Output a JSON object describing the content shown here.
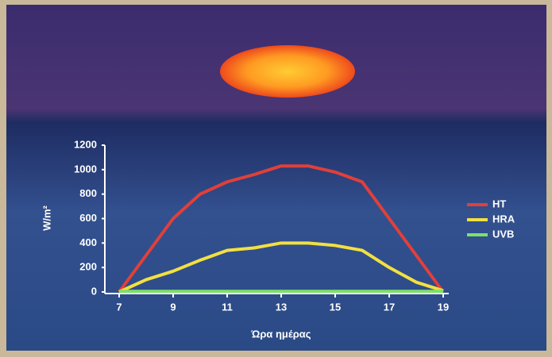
{
  "chart_data": {
    "type": "line",
    "y_label": "W/m²",
    "x_label": "Ώρα ημέρας",
    "x": [
      7,
      8,
      9,
      10,
      11,
      12,
      13,
      14,
      15,
      16,
      17,
      18,
      19
    ],
    "series": [
      {
        "name": "HT",
        "color": "#e0403a",
        "values": [
          0,
          300,
          600,
          800,
          900,
          960,
          1030,
          1030,
          980,
          900,
          600,
          300,
          0
        ]
      },
      {
        "name": "HRA",
        "color": "#f2e040",
        "values": [
          0,
          100,
          170,
          260,
          340,
          360,
          400,
          400,
          380,
          340,
          200,
          80,
          10
        ]
      },
      {
        "name": "UVB",
        "color": "#7ee06a",
        "values": [
          5,
          5,
          5,
          5,
          5,
          5,
          5,
          5,
          5,
          5,
          5,
          5,
          5
        ]
      }
    ],
    "xlim": [
      7,
      19
    ],
    "xticks": [
      7,
      9,
      11,
      13,
      15,
      17,
      19
    ],
    "ylim": [
      0,
      1200
    ],
    "yticks": [
      0,
      200,
      400,
      600,
      800,
      1000,
      1200
    ],
    "legend": "right"
  }
}
